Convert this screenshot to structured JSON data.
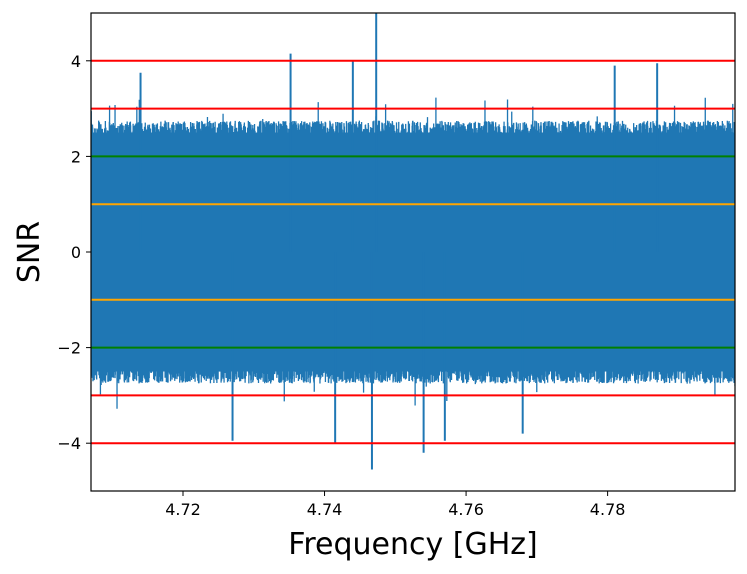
{
  "chart_data": {
    "type": "line",
    "title": "",
    "xlabel": "Frequency [GHz]",
    "ylabel": "SNR",
    "xlim": [
      4.707,
      4.798
    ],
    "ylim": [
      -5,
      5
    ],
    "x_ticks": [
      {
        "value": 4.72,
        "label": "4.72"
      },
      {
        "value": 4.74,
        "label": "4.74"
      },
      {
        "value": 4.76,
        "label": "4.76"
      },
      {
        "value": 4.78,
        "label": "4.78"
      }
    ],
    "y_ticks": [
      {
        "value": 4,
        "label": "4"
      },
      {
        "value": 2,
        "label": "2"
      },
      {
        "value": 0,
        "label": "0"
      },
      {
        "value": -2,
        "label": "−2"
      },
      {
        "value": -4,
        "label": "−4"
      }
    ],
    "grid": false,
    "series": [
      {
        "color": "#1f77b4",
        "values_description_free": true,
        "band_top": 2.7,
        "band_bottom": -2.7,
        "notable_peaks": [
          {
            "x": 4.7473,
            "y": 5.0
          },
          {
            "x": 4.7352,
            "y": 4.15
          },
          {
            "x": 4.744,
            "y": 4.0
          },
          {
            "x": 4.787,
            "y": 3.95
          },
          {
            "x": 4.714,
            "y": 3.75
          },
          {
            "x": 4.781,
            "y": 3.9
          }
        ],
        "notable_troughs": [
          {
            "x": 4.7467,
            "y": -4.55
          },
          {
            "x": 4.754,
            "y": -4.2
          },
          {
            "x": 4.7415,
            "y": -4.0
          },
          {
            "x": 4.727,
            "y": -3.95
          },
          {
            "x": 4.757,
            "y": -3.95
          },
          {
            "x": 4.768,
            "y": -3.8
          }
        ]
      }
    ],
    "reference_lines": [
      {
        "y": 4,
        "color": "#ff0000"
      },
      {
        "y": 3,
        "color": "#ff0000"
      },
      {
        "y": 2,
        "color": "#008000"
      },
      {
        "y": 1,
        "color": "#ffa500"
      },
      {
        "y": -1,
        "color": "#ffa500"
      },
      {
        "y": -2,
        "color": "#008000"
      },
      {
        "y": -3,
        "color": "#ff0000"
      },
      {
        "y": -4,
        "color": "#ff0000"
      }
    ]
  }
}
